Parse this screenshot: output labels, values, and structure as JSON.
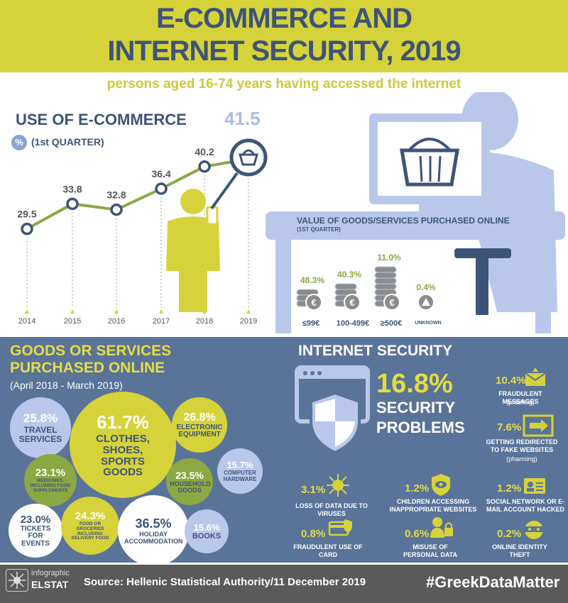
{
  "header": {
    "title_line1": "E-COMMERCE AND",
    "title_line2": "INTERNET SECURITY, 2019",
    "subtitle": "persons aged 16-74 years having accessed the internet"
  },
  "ecommerce": {
    "title": "USE OF E-COMMERCE",
    "unit_symbol": "%",
    "period": "(1st QUARTER)"
  },
  "chart_data": {
    "type": "line",
    "x": [
      "2014",
      "2015",
      "2016",
      "2017",
      "2018",
      "2019"
    ],
    "values": [
      29.5,
      33.8,
      32.8,
      36.4,
      40.2,
      41.5
    ],
    "value_labels": [
      "29.5",
      "33.8",
      "32.8",
      "36.4",
      "40.2",
      "41.5"
    ],
    "color": "#8aa843"
  },
  "value_of_goods": {
    "title": "VALUE OF GOODS/SERVICES PURCHASED ONLINE",
    "subtitle": "(1ST QUARTER)",
    "items": [
      {
        "pct": "48.3%",
        "label": "≤99€"
      },
      {
        "pct": "40.3%",
        "label": "100-499€"
      },
      {
        "pct": "11.0%",
        "label": "≥500€"
      },
      {
        "pct": "0.4%",
        "label": "UNKNOWN"
      }
    ]
  },
  "goods": {
    "title_line1": "GOODS OR SERVICES",
    "title_line2": "PURCHASED ONLINE",
    "period": "(April 2018 - March 2019)",
    "bubbles": [
      {
        "value": "25.8%",
        "label": "TRAVEL SERVICES"
      },
      {
        "value": "61.7%",
        "label": "CLOTHES, SHOES, SPORTS GOODS"
      },
      {
        "value": "26.8%",
        "label": "ELECTRONIC EQUIPMENT"
      },
      {
        "value": "15.7%",
        "label": "COMPUTER HARDWARE"
      },
      {
        "value": "23.1%",
        "label": "MEDICINES, INCLUDING FOOD SUPPLEMENTS"
      },
      {
        "value": "23.5%",
        "label": "HOUSEHOLD GOODS"
      },
      {
        "value": "23.0%",
        "label": "TICKETS FOR EVENTS"
      },
      {
        "value": "24.3%",
        "label": "FOOD OR GROCERIES INCLUDING DELIVERY FOOD"
      },
      {
        "value": "36.5%",
        "label": "HOLIDAY ACCOMMODATION"
      },
      {
        "value": "15.6%",
        "label": "BOOKS"
      }
    ]
  },
  "security": {
    "title": "INTERNET SECURITY",
    "main_value": "16.8%",
    "main_label_1": "SECURITY",
    "main_label_2": "PROBLEMS",
    "items": [
      {
        "value": "10.4%",
        "label": "FRAUDULENT MESSAGES",
        "sub": "(phishing)"
      },
      {
        "value": "7.6%",
        "label": "GETTING REDIRECTED TO FAKE WEBSITES",
        "sub": "(pharming)"
      },
      {
        "value": "3.1%",
        "label": "LOSS OF DATA DUE TO VIRUSES"
      },
      {
        "value": "1.2%",
        "label": "CHILDREN ACCESSING INAPPROPRIATE WEBSITES"
      },
      {
        "value": "1.2%",
        "label": "SOCIAL NETWORK OR E-MAIL ACCOUNT HACKED"
      },
      {
        "value": "0.8%",
        "label": "FRAUDULENT USE OF CARD"
      },
      {
        "value": "0.6%",
        "label": "MISUSE OF PERSONAL DATA"
      },
      {
        "value": "0.2%",
        "label": "ONLINE IDENTITY THEFT"
      }
    ]
  },
  "footer": {
    "logo_line1": "infographic",
    "logo_line2": "ELSTAT",
    "source": "Source: Hellenic Statistical Authority/11 December 2019",
    "hashtag": "#GreekDataMatter"
  }
}
